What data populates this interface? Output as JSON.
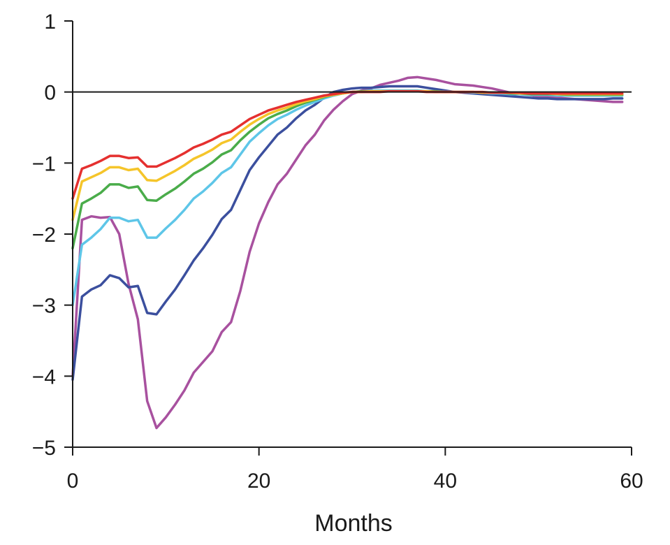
{
  "chart_data": {
    "type": "line",
    "title": "",
    "xlabel": "Months",
    "ylabel": "",
    "xlim": [
      0,
      60
    ],
    "ylim": [
      -5,
      1
    ],
    "xticks": [
      0,
      20,
      40,
      60
    ],
    "xtick_labels": [
      "0",
      "20",
      "40",
      "60"
    ],
    "yticks": [
      1,
      0,
      -1,
      -2,
      -3,
      -4,
      -5
    ],
    "ytick_labels": [
      "1",
      "0",
      "−1",
      "−2",
      "−3",
      "−4",
      "−5"
    ],
    "zero_line": true,
    "grid": false,
    "legend": "none",
    "x": [
      0,
      1,
      2,
      3,
      4,
      5,
      6,
      7,
      8,
      9,
      10,
      11,
      12,
      13,
      14,
      15,
      16,
      17,
      18,
      19,
      20,
      21,
      22,
      23,
      24,
      25,
      26,
      27,
      28,
      29,
      30,
      31,
      32,
      33,
      34,
      35,
      36,
      37,
      38,
      39,
      40,
      41,
      42,
      43,
      44,
      45,
      46,
      47,
      48,
      49,
      50,
      51,
      52,
      53,
      54,
      55,
      56,
      57,
      58,
      59
    ],
    "series": [
      {
        "name": "purple",
        "color": "#a8519f",
        "values": [
          -4.0,
          -1.8,
          -1.75,
          -1.77,
          -1.76,
          -2.0,
          -2.7,
          -3.2,
          -4.35,
          -4.73,
          -4.58,
          -4.4,
          -4.2,
          -3.95,
          -3.8,
          -3.65,
          -3.38,
          -3.24,
          -2.8,
          -2.25,
          -1.85,
          -1.55,
          -1.3,
          -1.15,
          -0.95,
          -0.75,
          -0.6,
          -0.4,
          -0.25,
          -0.13,
          -0.03,
          0.02,
          0.05,
          0.1,
          0.13,
          0.16,
          0.2,
          0.21,
          0.19,
          0.17,
          0.14,
          0.11,
          0.1,
          0.09,
          0.07,
          0.05,
          0.02,
          -0.01,
          -0.02,
          -0.04,
          -0.06,
          -0.07,
          -0.08,
          -0.09,
          -0.1,
          -0.11,
          -0.12,
          -0.13,
          -0.14,
          -0.14
        ]
      },
      {
        "name": "dark blue",
        "color": "#3b4f9e",
        "values": [
          -4.05,
          -2.88,
          -2.78,
          -2.72,
          -2.58,
          -2.62,
          -2.75,
          -2.73,
          -3.11,
          -3.13,
          -2.95,
          -2.78,
          -2.58,
          -2.37,
          -2.2,
          -2.01,
          -1.79,
          -1.66,
          -1.38,
          -1.1,
          -0.92,
          -0.76,
          -0.6,
          -0.5,
          -0.37,
          -0.26,
          -0.18,
          -0.08,
          0.0,
          0.03,
          0.05,
          0.06,
          0.06,
          0.07,
          0.08,
          0.08,
          0.08,
          0.08,
          0.06,
          0.04,
          0.02,
          0.0,
          -0.01,
          -0.02,
          -0.03,
          -0.04,
          -0.05,
          -0.06,
          -0.07,
          -0.08,
          -0.09,
          -0.09,
          -0.1,
          -0.1,
          -0.1,
          -0.1,
          -0.1,
          -0.1,
          -0.09,
          -0.09
        ]
      },
      {
        "name": "light blue",
        "color": "#5ec6e8",
        "values": [
          -3.0,
          -2.15,
          -2.05,
          -1.93,
          -1.77,
          -1.77,
          -1.82,
          -1.8,
          -2.05,
          -2.05,
          -1.92,
          -1.8,
          -1.66,
          -1.5,
          -1.4,
          -1.28,
          -1.14,
          -1.06,
          -0.88,
          -0.7,
          -0.58,
          -0.47,
          -0.38,
          -0.32,
          -0.25,
          -0.19,
          -0.14,
          -0.09,
          -0.05,
          -0.02,
          0.0,
          0.01,
          0.02,
          0.02,
          0.02,
          0.02,
          0.02,
          0.02,
          0.01,
          0.01,
          0.0,
          0.0,
          0.0,
          -0.01,
          -0.01,
          -0.02,
          -0.02,
          -0.03,
          -0.03,
          -0.04,
          -0.04,
          -0.04,
          -0.05,
          -0.05,
          -0.05,
          -0.05,
          -0.05,
          -0.05,
          -0.05,
          -0.05
        ]
      },
      {
        "name": "green",
        "color": "#4aac4a",
        "values": [
          -2.2,
          -1.57,
          -1.5,
          -1.42,
          -1.3,
          -1.3,
          -1.35,
          -1.33,
          -1.52,
          -1.53,
          -1.44,
          -1.36,
          -1.26,
          -1.15,
          -1.08,
          -0.99,
          -0.88,
          -0.82,
          -0.68,
          -0.56,
          -0.46,
          -0.37,
          -0.31,
          -0.26,
          -0.2,
          -0.15,
          -0.11,
          -0.07,
          -0.04,
          -0.02,
          0.0,
          0.01,
          0.01,
          0.01,
          0.01,
          0.01,
          0.01,
          0.01,
          0.01,
          0.01,
          0.0,
          0.0,
          0.0,
          0.0,
          -0.01,
          -0.01,
          -0.01,
          -0.02,
          -0.02,
          -0.03,
          -0.03,
          -0.03,
          -0.03,
          -0.04,
          -0.04,
          -0.04,
          -0.04,
          -0.04,
          -0.04,
          -0.04
        ]
      },
      {
        "name": "yellow",
        "color": "#f5c52a",
        "values": [
          -1.8,
          -1.26,
          -1.2,
          -1.14,
          -1.06,
          -1.06,
          -1.1,
          -1.08,
          -1.24,
          -1.25,
          -1.18,
          -1.11,
          -1.03,
          -0.94,
          -0.88,
          -0.81,
          -0.72,
          -0.67,
          -0.56,
          -0.46,
          -0.38,
          -0.31,
          -0.26,
          -0.22,
          -0.17,
          -0.13,
          -0.1,
          -0.06,
          -0.04,
          -0.02,
          0.0,
          0.0,
          0.01,
          0.01,
          0.01,
          0.01,
          0.01,
          0.01,
          0.01,
          0.0,
          0.0,
          0.0,
          0.0,
          0.0,
          -0.01,
          -0.01,
          -0.01,
          -0.01,
          -0.02,
          -0.02,
          -0.02,
          -0.02,
          -0.03,
          -0.03,
          -0.03,
          -0.03,
          -0.03,
          -0.03,
          -0.03,
          -0.03
        ]
      },
      {
        "name": "red",
        "color": "#e5302f",
        "values": [
          -1.5,
          -1.08,
          -1.03,
          -0.97,
          -0.9,
          -0.9,
          -0.93,
          -0.92,
          -1.05,
          -1.05,
          -0.99,
          -0.93,
          -0.86,
          -0.78,
          -0.73,
          -0.67,
          -0.6,
          -0.56,
          -0.47,
          -0.38,
          -0.32,
          -0.26,
          -0.22,
          -0.18,
          -0.14,
          -0.11,
          -0.08,
          -0.05,
          -0.03,
          -0.01,
          0.0,
          0.0,
          0.0,
          0.0,
          0.01,
          0.01,
          0.01,
          0.01,
          0.0,
          0.0,
          0.0,
          0.0,
          0.0,
          0.0,
          0.0,
          -0.01,
          -0.01,
          -0.01,
          -0.01,
          -0.02,
          -0.02,
          -0.02,
          -0.02,
          -0.02,
          -0.02,
          -0.02,
          -0.02,
          -0.02,
          -0.02,
          -0.02
        ]
      }
    ]
  }
}
